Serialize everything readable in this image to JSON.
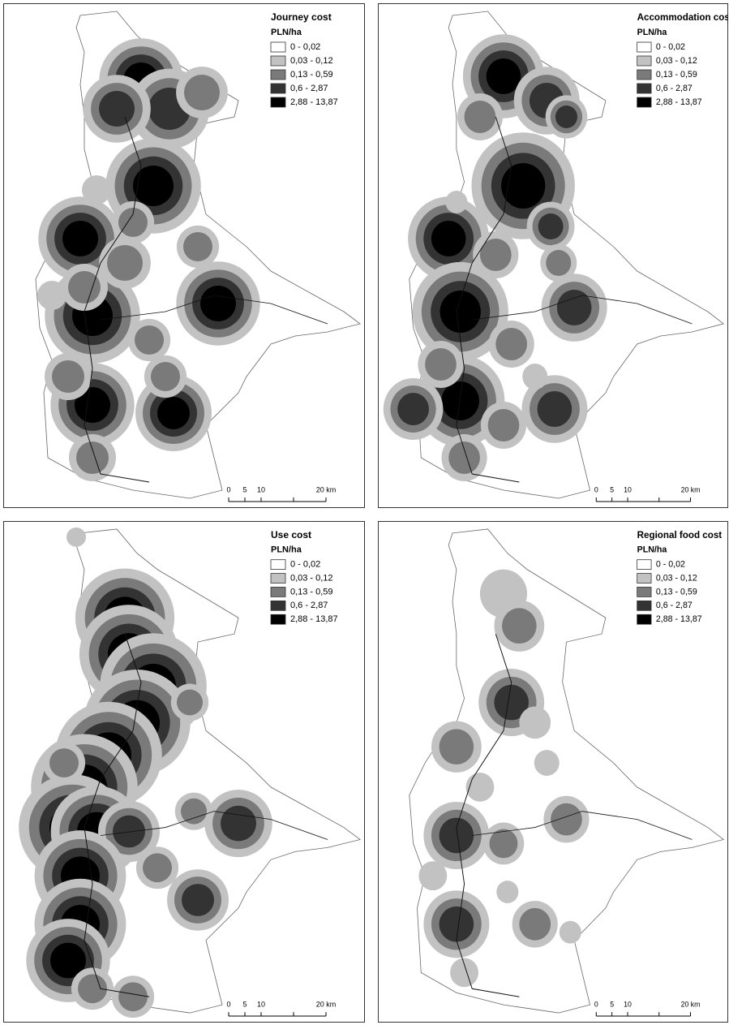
{
  "panels": [
    {
      "title": "Journey cost",
      "unit": "PLN/ha",
      "legend": [
        "0 - 0,02",
        "0,03 - 0,12",
        "0,13 - 0,59",
        "0,6 - 2,87",
        "2,88 - 13,87"
      ],
      "scale": [
        "0",
        "5",
        "10",
        "20 km"
      ]
    },
    {
      "title": "Accommodation cost",
      "unit": "PLN/ha",
      "legend": [
        "0 - 0,02",
        "0,03 - 0,12",
        "0,13 - 0,59",
        "0,6 - 2,87",
        "2,88 - 13,87"
      ],
      "scale": [
        "0",
        "5",
        "10",
        "20 km"
      ]
    },
    {
      "title": "Use cost",
      "unit": "PLN/ha",
      "legend": [
        "0 - 0,02",
        "0,03 - 0,12",
        "0,13 - 0,59",
        "0,6 - 2,87",
        "2,88 - 13,87"
      ],
      "scale": [
        "0",
        "5",
        "10",
        "20 km"
      ]
    },
    {
      "title": "Regional food cost",
      "unit": "PLN/ha",
      "legend": [
        "0 - 0,02",
        "0,03 - 0,12",
        "0,13 - 0,59",
        "0,6 - 2,87",
        "2,88 - 13,87"
      ],
      "scale": [
        "0",
        "5",
        "10",
        "20 km"
      ]
    }
  ]
}
